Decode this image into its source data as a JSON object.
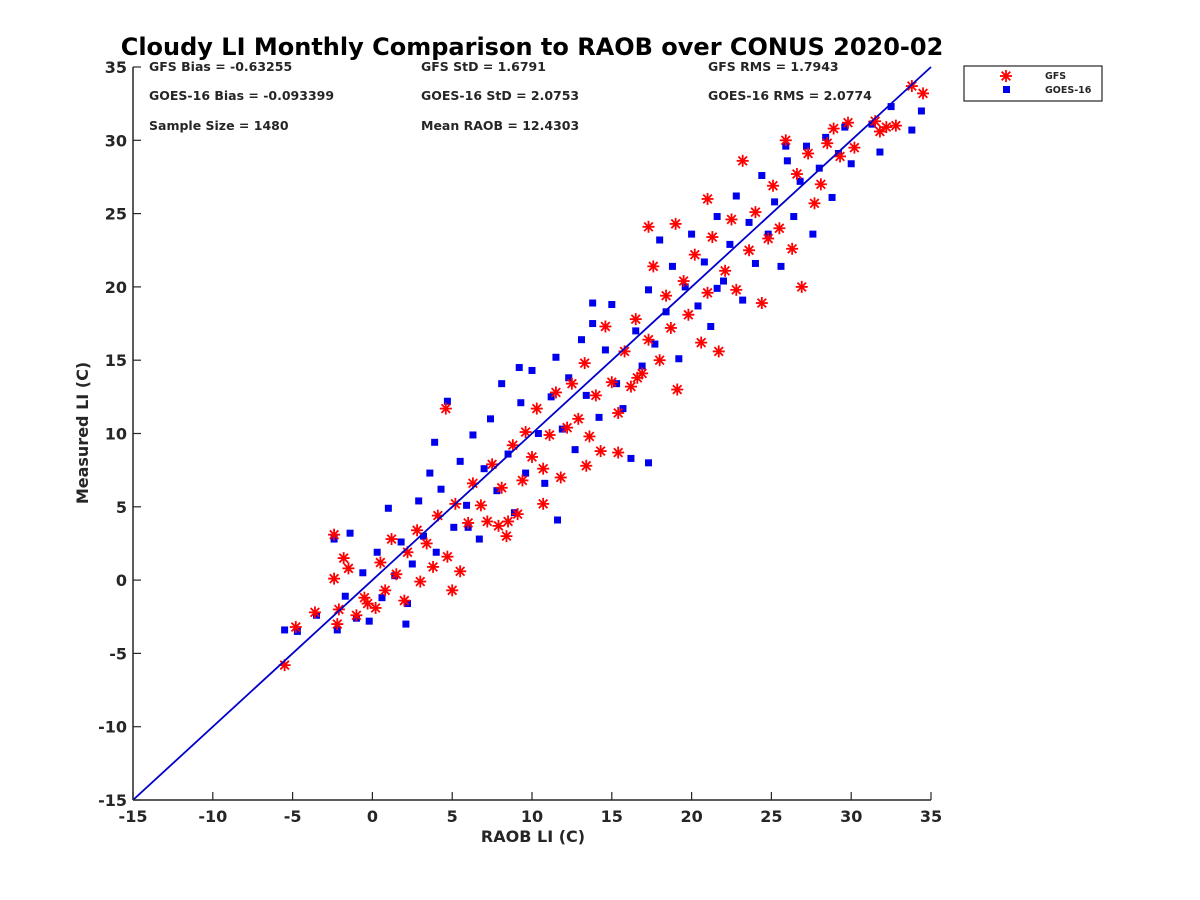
{
  "chart_data": {
    "type": "scatter",
    "title": "Cloudy LI Monthly Comparison to RAOB over CONUS 2020-02",
    "xlabel": "RAOB LI (C)",
    "ylabel": "Measured LI (C)",
    "xlim": [
      -15,
      35
    ],
    "ylim": [
      -15,
      35
    ],
    "xticks": [
      "-15",
      "-10",
      "-5",
      "0",
      "5",
      "10",
      "15",
      "20",
      "25",
      "30",
      "35"
    ],
    "yticks": [
      "-15",
      "-10",
      "-5",
      "0",
      "5",
      "10",
      "15",
      "20",
      "25",
      "30",
      "35"
    ],
    "grid": false,
    "legend_position": "outside top-right",
    "reference_line": {
      "from": [
        -15,
        -15
      ],
      "to": [
        35,
        35
      ],
      "color": "#0000cc"
    },
    "stats": {
      "gfs_bias": "GFS Bias = -0.63255",
      "gfs_std": "GFS StD = 1.6791",
      "gfs_rms": "GFS RMS = 1.7943",
      "goes_bias": "GOES-16 Bias = -0.093399",
      "goes_std": "GOES-16 StD = 2.0753",
      "goes_rms": "GOES-16 RMS = 2.0774",
      "sample_size": "Sample Size = 1480",
      "mean_raob": "Mean RAOB = 12.4303"
    },
    "series": [
      {
        "name": "GFS",
        "marker": "asterisk",
        "color": "#ff0000",
        "points": [
          [
            -5.5,
            -5.8
          ],
          [
            -4.8,
            -3.2
          ],
          [
            -3.6,
            -2.2
          ],
          [
            -2.4,
            3.1
          ],
          [
            -2.2,
            -3.0
          ],
          [
            -2.1,
            -2.0
          ],
          [
            -2.4,
            0.1
          ],
          [
            -1.8,
            1.5
          ],
          [
            -1.5,
            0.8
          ],
          [
            -1.0,
            -2.4
          ],
          [
            -0.5,
            -1.2
          ],
          [
            -0.3,
            -1.6
          ],
          [
            0.2,
            -1.9
          ],
          [
            0.5,
            1.2
          ],
          [
            0.8,
            -0.7
          ],
          [
            1.2,
            2.8
          ],
          [
            1.5,
            0.4
          ],
          [
            2.0,
            -1.4
          ],
          [
            2.2,
            1.9
          ],
          [
            2.8,
            3.4
          ],
          [
            3.0,
            -0.1
          ],
          [
            3.4,
            2.5
          ],
          [
            3.8,
            0.9
          ],
          [
            4.1,
            4.4
          ],
          [
            4.7,
            1.6
          ],
          [
            5.0,
            -0.7
          ],
          [
            5.2,
            5.2
          ],
          [
            5.5,
            0.6
          ],
          [
            6.0,
            3.9
          ],
          [
            6.3,
            6.6
          ],
          [
            6.8,
            5.1
          ],
          [
            7.2,
            4.0
          ],
          [
            7.5,
            7.9
          ],
          [
            8.1,
            6.3
          ],
          [
            8.4,
            3.0
          ],
          [
            8.8,
            9.2
          ],
          [
            9.1,
            4.5
          ],
          [
            9.4,
            6.8
          ],
          [
            9.6,
            10.1
          ],
          [
            10.0,
            8.4
          ],
          [
            10.3,
            11.7
          ],
          [
            10.7,
            7.6
          ],
          [
            11.1,
            9.9
          ],
          [
            11.5,
            12.8
          ],
          [
            11.8,
            7.0
          ],
          [
            12.2,
            10.4
          ],
          [
            12.5,
            13.4
          ],
          [
            12.9,
            11.0
          ],
          [
            13.3,
            14.8
          ],
          [
            13.6,
            9.8
          ],
          [
            14.0,
            12.6
          ],
          [
            14.3,
            8.8
          ],
          [
            14.6,
            17.3
          ],
          [
            15.0,
            13.5
          ],
          [
            15.4,
            11.4
          ],
          [
            15.8,
            15.6
          ],
          [
            16.2,
            13.2
          ],
          [
            16.5,
            17.8
          ],
          [
            16.9,
            14.1
          ],
          [
            17.3,
            16.4
          ],
          [
            17.6,
            21.4
          ],
          [
            18.0,
            15.0
          ],
          [
            18.4,
            19.4
          ],
          [
            18.7,
            17.2
          ],
          [
            19.1,
            13.0
          ],
          [
            19.5,
            20.4
          ],
          [
            19.8,
            18.1
          ],
          [
            20.2,
            22.2
          ],
          [
            20.6,
            16.2
          ],
          [
            21.0,
            19.6
          ],
          [
            21.3,
            23.4
          ],
          [
            21.7,
            15.6
          ],
          [
            22.1,
            21.1
          ],
          [
            22.5,
            24.6
          ],
          [
            22.8,
            19.8
          ],
          [
            23.2,
            28.6
          ],
          [
            23.6,
            22.5
          ],
          [
            24.0,
            25.1
          ],
          [
            24.4,
            18.9
          ],
          [
            24.8,
            23.3
          ],
          [
            25.1,
            26.9
          ],
          [
            25.5,
            24.0
          ],
          [
            25.9,
            30.0
          ],
          [
            26.3,
            22.6
          ],
          [
            26.6,
            27.7
          ],
          [
            26.9,
            20.0
          ],
          [
            27.3,
            29.1
          ],
          [
            27.7,
            25.7
          ],
          [
            28.1,
            27.0
          ],
          [
            28.5,
            29.8
          ],
          [
            28.9,
            30.8
          ],
          [
            29.3,
            28.9
          ],
          [
            29.8,
            31.2
          ],
          [
            30.2,
            29.5
          ],
          [
            31.5,
            31.3
          ],
          [
            31.8,
            30.6
          ],
          [
            32.2,
            30.9
          ],
          [
            32.8,
            31.0
          ],
          [
            33.8,
            33.7
          ],
          [
            34.5,
            33.2
          ],
          [
            4.6,
            11.7
          ],
          [
            8.5,
            4.0
          ],
          [
            10.7,
            5.2
          ],
          [
            13.4,
            7.8
          ],
          [
            17.3,
            24.1
          ],
          [
            19.0,
            24.3
          ],
          [
            21.0,
            26.0
          ],
          [
            7.9,
            3.7
          ],
          [
            15.4,
            8.7
          ],
          [
            16.6,
            13.8
          ]
        ]
      },
      {
        "name": "GOES-16",
        "marker": "square",
        "color": "#0000ee",
        "points": [
          [
            -5.5,
            -3.4
          ],
          [
            -4.7,
            -3.5
          ],
          [
            -3.5,
            -2.4
          ],
          [
            -2.4,
            2.8
          ],
          [
            -2.2,
            -3.4
          ],
          [
            -1.7,
            -1.1
          ],
          [
            -1.4,
            3.2
          ],
          [
            -1.0,
            -2.6
          ],
          [
            -0.6,
            0.5
          ],
          [
            -0.2,
            -2.8
          ],
          [
            0.3,
            1.9
          ],
          [
            0.6,
            -1.2
          ],
          [
            1.0,
            4.9
          ],
          [
            1.4,
            0.3
          ],
          [
            1.8,
            2.6
          ],
          [
            2.1,
            -3.0
          ],
          [
            2.5,
            1.1
          ],
          [
            2.9,
            5.4
          ],
          [
            3.2,
            3.0
          ],
          [
            3.6,
            7.3
          ],
          [
            4.0,
            1.9
          ],
          [
            4.3,
            6.2
          ],
          [
            4.7,
            12.2
          ],
          [
            5.1,
            3.6
          ],
          [
            5.5,
            8.1
          ],
          [
            5.9,
            5.1
          ],
          [
            6.3,
            9.9
          ],
          [
            6.7,
            2.8
          ],
          [
            7.0,
            7.6
          ],
          [
            7.4,
            11.0
          ],
          [
            7.8,
            6.1
          ],
          [
            8.1,
            13.4
          ],
          [
            8.5,
            8.6
          ],
          [
            8.9,
            4.6
          ],
          [
            9.3,
            12.1
          ],
          [
            9.6,
            7.3
          ],
          [
            10.0,
            14.3
          ],
          [
            10.4,
            10.0
          ],
          [
            10.8,
            6.6
          ],
          [
            11.2,
            12.5
          ],
          [
            11.5,
            15.2
          ],
          [
            11.9,
            10.3
          ],
          [
            12.3,
            13.8
          ],
          [
            12.7,
            8.9
          ],
          [
            13.1,
            16.4
          ],
          [
            13.4,
            12.6
          ],
          [
            13.8,
            17.5
          ],
          [
            14.2,
            11.1
          ],
          [
            14.6,
            15.7
          ],
          [
            15.0,
            18.8
          ],
          [
            15.3,
            13.4
          ],
          [
            15.7,
            11.7
          ],
          [
            16.2,
            8.3
          ],
          [
            16.5,
            17.0
          ],
          [
            16.9,
            14.6
          ],
          [
            17.3,
            19.8
          ],
          [
            17.7,
            16.1
          ],
          [
            18.0,
            23.2
          ],
          [
            18.4,
            18.3
          ],
          [
            18.8,
            21.4
          ],
          [
            19.2,
            15.1
          ],
          [
            19.6,
            20.0
          ],
          [
            20.0,
            23.6
          ],
          [
            20.4,
            18.7
          ],
          [
            20.8,
            21.7
          ],
          [
            21.2,
            17.3
          ],
          [
            21.6,
            24.8
          ],
          [
            22.0,
            20.4
          ],
          [
            22.4,
            22.9
          ],
          [
            22.8,
            26.2
          ],
          [
            23.2,
            19.1
          ],
          [
            23.6,
            24.4
          ],
          [
            24.0,
            21.6
          ],
          [
            24.4,
            27.6
          ],
          [
            24.8,
            23.6
          ],
          [
            25.2,
            25.8
          ],
          [
            25.6,
            21.4
          ],
          [
            26.0,
            28.6
          ],
          [
            26.4,
            24.8
          ],
          [
            26.8,
            27.2
          ],
          [
            27.2,
            29.6
          ],
          [
            27.6,
            23.6
          ],
          [
            28.0,
            28.1
          ],
          [
            28.4,
            30.2
          ],
          [
            28.8,
            26.1
          ],
          [
            29.2,
            29.1
          ],
          [
            29.6,
            30.9
          ],
          [
            30.0,
            28.4
          ],
          [
            31.3,
            31.1
          ],
          [
            31.8,
            29.2
          ],
          [
            32.5,
            32.3
          ],
          [
            33.8,
            30.7
          ],
          [
            34.4,
            32.0
          ],
          [
            9.2,
            14.5
          ],
          [
            6.0,
            3.6
          ],
          [
            11.6,
            4.1
          ],
          [
            13.8,
            18.9
          ],
          [
            17.3,
            8.0
          ],
          [
            21.6,
            19.9
          ],
          [
            25.9,
            29.6
          ],
          [
            2.2,
            -1.6
          ],
          [
            3.9,
            9.4
          ]
        ]
      }
    ]
  }
}
